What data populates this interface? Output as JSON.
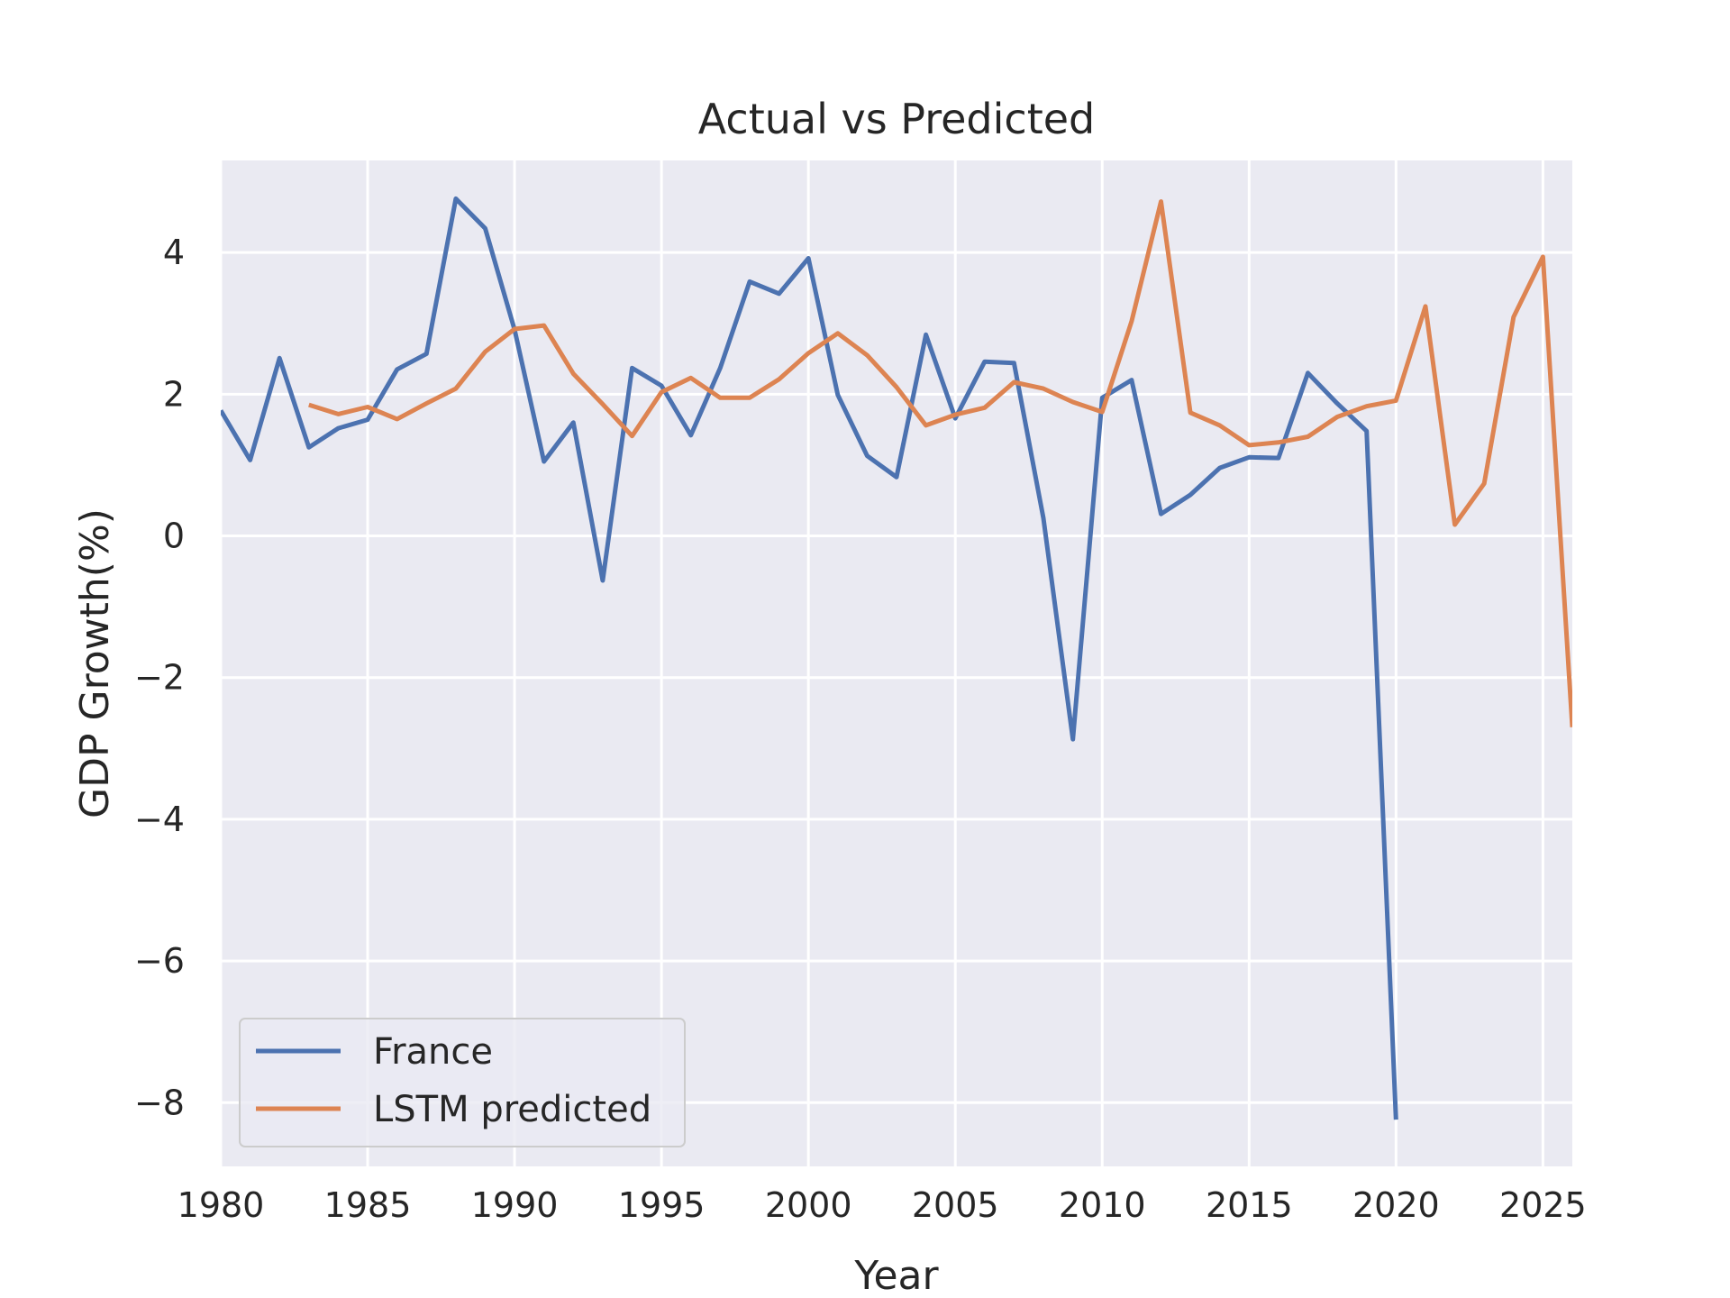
{
  "chart_data": {
    "type": "line",
    "title": "Actual vs Predicted",
    "xlabel": "Year",
    "ylabel": "GDP Growth(%)",
    "xlim": [
      1980,
      2026
    ],
    "ylim": [
      -8.9,
      5.3
    ],
    "xticks": [
      1980,
      1985,
      1990,
      1995,
      2000,
      2005,
      2010,
      2015,
      2020,
      2025
    ],
    "xtick_labels": [
      "1980",
      "1985",
      "1990",
      "1995",
      "2000",
      "2005",
      "2010",
      "2015",
      "2020",
      "2025"
    ],
    "yticks": [
      4,
      2,
      0,
      -2,
      -4,
      -6,
      -8
    ],
    "ytick_labels": [
      "4",
      "2",
      "0",
      "−2",
      "−4",
      "−6",
      "−8"
    ],
    "grid": true,
    "legend_position": "lower-left",
    "series": [
      {
        "name": "France",
        "color": "#4c72b0",
        "x": [
          1980,
          1981,
          1982,
          1983,
          1984,
          1985,
          1986,
          1987,
          1988,
          1989,
          1990,
          1991,
          1992,
          1993,
          1994,
          1995,
          1996,
          1997,
          1998,
          1999,
          2000,
          2001,
          2002,
          2003,
          2004,
          2005,
          2006,
          2007,
          2008,
          2009,
          2010,
          2011,
          2012,
          2013,
          2014,
          2015,
          2016,
          2017,
          2018,
          2019,
          2020
        ],
        "y": [
          1.77,
          1.07,
          2.51,
          1.25,
          1.52,
          1.64,
          2.35,
          2.57,
          4.76,
          4.34,
          2.91,
          1.05,
          1.6,
          -0.63,
          2.37,
          2.12,
          1.42,
          2.37,
          3.59,
          3.42,
          3.92,
          1.99,
          1.13,
          0.83,
          2.84,
          1.66,
          2.46,
          2.44,
          0.25,
          -2.87,
          1.95,
          2.2,
          0.31,
          0.58,
          0.96,
          1.11,
          1.1,
          2.3,
          1.87,
          1.48,
          -8.24
        ]
      },
      {
        "name": "LSTM predicted",
        "color": "#dd8452",
        "x": [
          1983,
          1984,
          1985,
          1986,
          1987,
          1988,
          1989,
          1990,
          1991,
          1992,
          1993,
          1994,
          1995,
          1996,
          1997,
          1998,
          1999,
          2000,
          2001,
          2002,
          2003,
          2004,
          2005,
          2006,
          2007,
          2008,
          2009,
          2010,
          2011,
          2012,
          2013,
          2014,
          2015,
          2016,
          2017,
          2018,
          2019,
          2020,
          2021,
          2022,
          2023,
          2024,
          2025,
          2026
        ],
        "y": [
          1.85,
          1.72,
          1.82,
          1.65,
          1.87,
          2.08,
          2.6,
          2.92,
          2.97,
          2.29,
          1.86,
          1.41,
          2.03,
          2.23,
          1.95,
          1.95,
          2.21,
          2.58,
          2.86,
          2.55,
          2.1,
          1.56,
          1.71,
          1.81,
          2.17,
          2.08,
          1.89,
          1.75,
          3.03,
          4.72,
          1.74,
          1.56,
          1.28,
          1.32,
          1.4,
          1.68,
          1.83,
          1.91,
          3.24,
          0.16,
          0.74,
          3.09,
          3.94,
          -2.7
        ]
      }
    ]
  }
}
